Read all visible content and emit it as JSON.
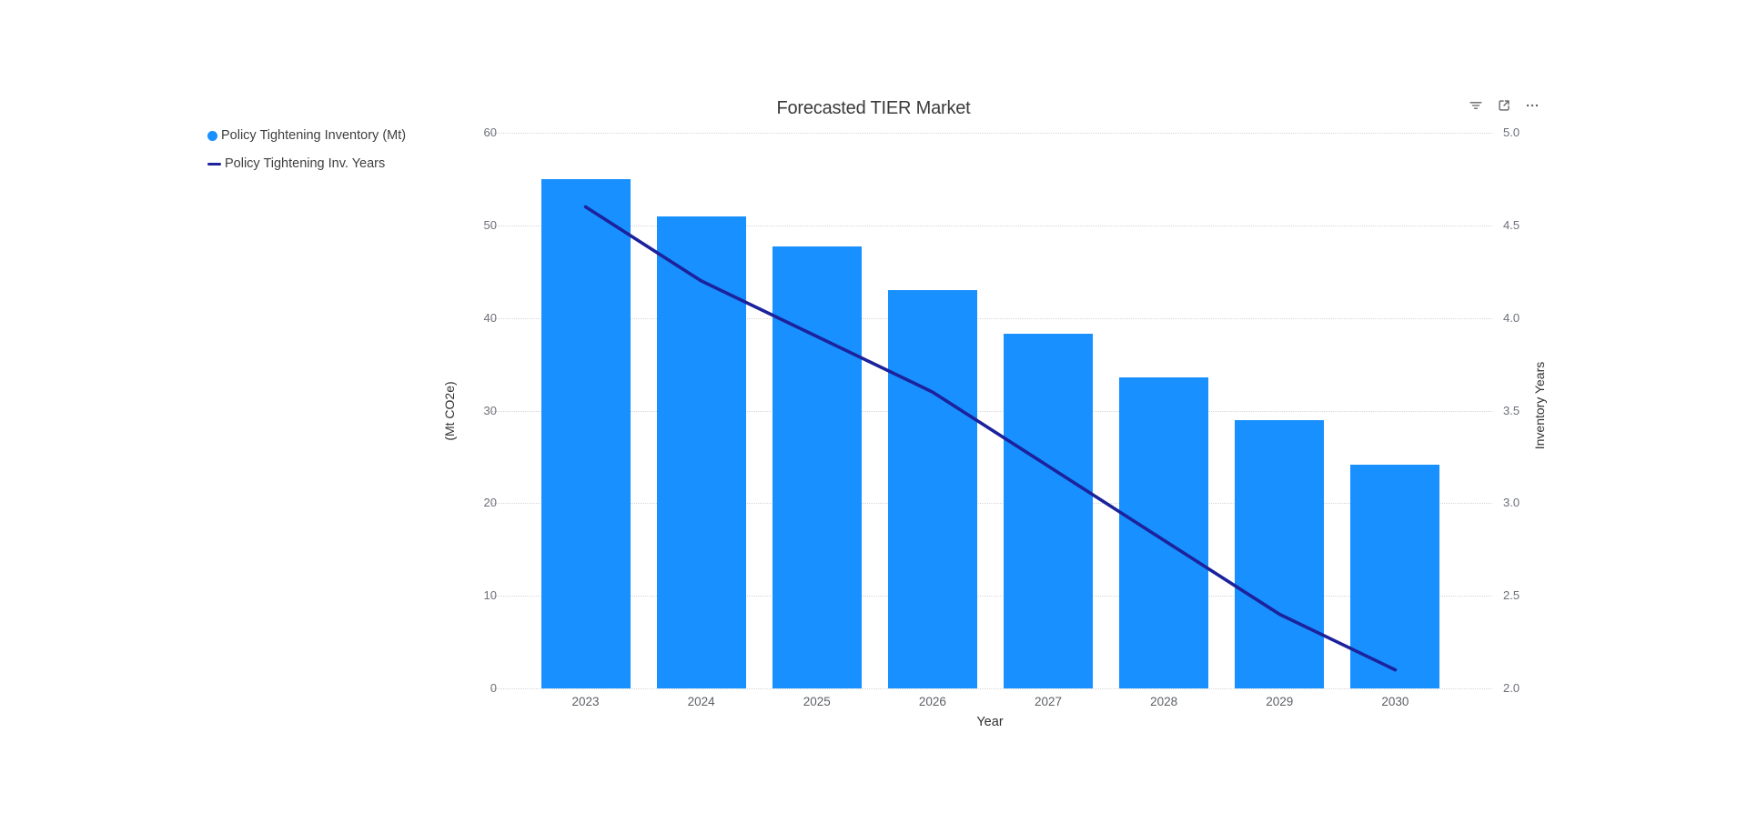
{
  "chart": {
    "header_icons": [
      {
        "name": "filter-icon"
      },
      {
        "name": "expand-icon"
      },
      {
        "name": "more-options-icon"
      }
    ]
  },
  "chart_data": {
    "type": "bar",
    "subtype": "bar-line combo, dual y-axis",
    "title": "Forecasted TIER Market",
    "categories": [
      "2023",
      "2024",
      "2025",
      "2026",
      "2027",
      "2028",
      "2029",
      "2030"
    ],
    "series": [
      {
        "name": "Policy Tightening Inventory (Mt)",
        "type": "bar",
        "axis": "left",
        "color": "#1890ff",
        "values": [
          55,
          51,
          47.7,
          43,
          38.3,
          33.6,
          29,
          24.2
        ]
      },
      {
        "name": "Policy Tightening Inv. Years",
        "type": "line",
        "axis": "right",
        "color": "#1c229b",
        "values": [
          4.6,
          4.2,
          3.9,
          3.6,
          3.2,
          2.8,
          2.4,
          2.1
        ]
      }
    ],
    "x_axis": {
      "name": "Year"
    },
    "left_axis": {
      "name": "(Mt CO2e)",
      "min": 0,
      "max": 60,
      "tick_step": 10,
      "tick_labels": [
        "0",
        "10",
        "20",
        "30",
        "40",
        "50",
        "60"
      ]
    },
    "right_axis": {
      "name": "Inventory Years",
      "min": 2.0,
      "max": 5.0,
      "tick_step": 0.5,
      "tick_labels": [
        "2.0",
        "2.5",
        "3.0",
        "3.5",
        "4.0",
        "4.5",
        "5.0"
      ]
    },
    "grid": "horizontal dotted lines on",
    "legend_position": "top-left"
  }
}
